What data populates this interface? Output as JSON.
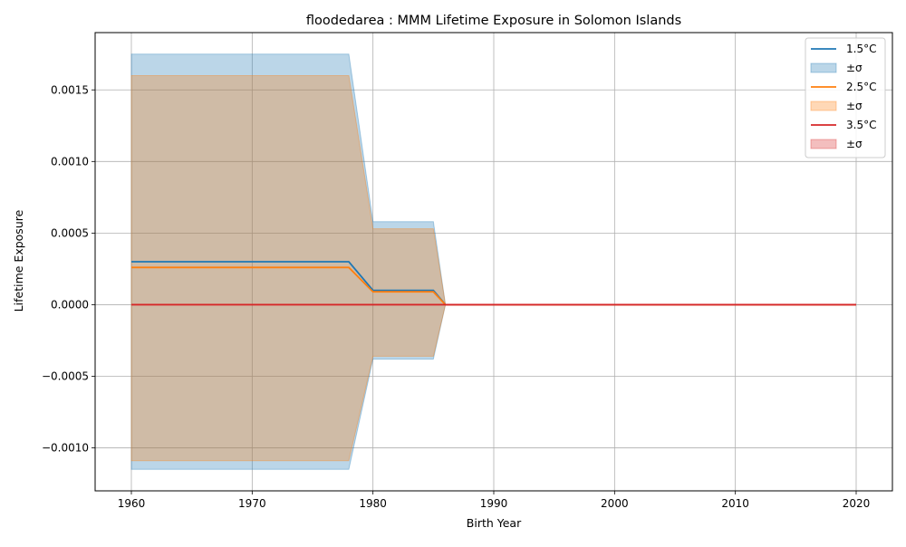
{
  "chart_data": {
    "type": "area",
    "title": "floodedarea : MMM Lifetime Exposure in Solomon Islands",
    "xlabel": "Birth Year",
    "ylabel": "Lifetime Exposure",
    "xlim": [
      1957,
      2023
    ],
    "ylim": [
      -0.0013,
      0.0019
    ],
    "xticks": [
      1960,
      1970,
      1980,
      1990,
      2000,
      2010,
      2020
    ],
    "yticks": [
      -0.001,
      -0.0005,
      0.0,
      0.0005,
      0.001,
      0.0015
    ],
    "ytick_labels": [
      "−0.0010",
      "−0.0005",
      "0.0000",
      "0.0005",
      "0.0010",
      "0.0015"
    ],
    "grid": true,
    "legend_position": "top-right",
    "band_label": "±σ",
    "series": [
      {
        "name": "1.5°C",
        "color": "#1f77b4",
        "fill_opacity": 0.3,
        "points": [
          [
            1960,
            0.0003
          ],
          [
            1978,
            0.0003
          ],
          [
            1980,
            0.0001
          ],
          [
            1985,
            0.0001
          ],
          [
            1986,
            0.0
          ],
          [
            2020,
            0.0
          ]
        ],
        "upper": [
          [
            1960,
            0.00175
          ],
          [
            1978,
            0.00175
          ],
          [
            1980,
            0.00058
          ],
          [
            1985,
            0.00058
          ],
          [
            1986,
            0.0
          ],
          [
            2020,
            0.0
          ]
        ],
        "lower": [
          [
            1960,
            -0.00115
          ],
          [
            1978,
            -0.00115
          ],
          [
            1980,
            -0.00038
          ],
          [
            1985,
            -0.00038
          ],
          [
            1986,
            0.0
          ],
          [
            2020,
            0.0
          ]
        ]
      },
      {
        "name": "2.5°C",
        "color": "#ff7f0e",
        "fill_opacity": 0.3,
        "points": [
          [
            1960,
            0.00026
          ],
          [
            1978,
            0.00026
          ],
          [
            1980,
            9e-05
          ],
          [
            1985,
            9e-05
          ],
          [
            1986,
            0.0
          ],
          [
            2020,
            0.0
          ]
        ],
        "upper": [
          [
            1960,
            0.0016
          ],
          [
            1978,
            0.0016
          ],
          [
            1980,
            0.00053
          ],
          [
            1985,
            0.00053
          ],
          [
            1986,
            0.0
          ],
          [
            2020,
            0.0
          ]
        ],
        "lower": [
          [
            1960,
            -0.00109
          ],
          [
            1978,
            -0.00109
          ],
          [
            1980,
            -0.00036
          ],
          [
            1985,
            -0.00036
          ],
          [
            1986,
            0.0
          ],
          [
            2020,
            0.0
          ]
        ]
      },
      {
        "name": "3.5°C",
        "color": "#d62728",
        "fill_opacity": 0.3,
        "points": [
          [
            1960,
            0.0
          ],
          [
            2020,
            0.0
          ]
        ],
        "upper": [
          [
            1960,
            0.0
          ],
          [
            2020,
            0.0
          ]
        ],
        "lower": [
          [
            1960,
            0.0
          ],
          [
            2020,
            0.0
          ]
        ]
      }
    ]
  }
}
